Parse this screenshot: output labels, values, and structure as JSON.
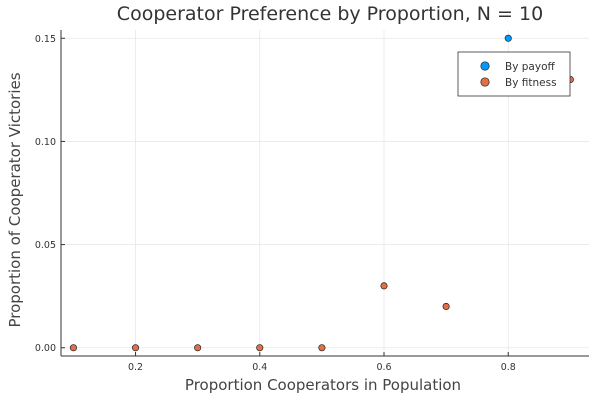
{
  "chart_data": {
    "type": "scatter",
    "title": "Cooperator Preference by Proportion, N = 10",
    "xlabel": "Proportion Cooperators in Population",
    "ylabel": "Proportion of Cooperator Victories",
    "xlim": [
      0.08,
      0.93
    ],
    "ylim": [
      -0.004,
      0.154
    ],
    "xticks": [
      0.2,
      0.4,
      0.6,
      0.8
    ],
    "xtick_labels": [
      "0.2",
      "0.4",
      "0.6",
      "0.8"
    ],
    "yticks": [
      0.0,
      0.05,
      0.1,
      0.15
    ],
    "ytick_labels": [
      "0.00",
      "0.05",
      "0.10",
      "0.15"
    ],
    "grid": true,
    "legend_position": "top-right",
    "series": [
      {
        "name": "By payoff",
        "color": "#009AFA",
        "x": [
          0.8
        ],
        "y": [
          0.15
        ]
      },
      {
        "name": "By fitness",
        "color": "#E26F46",
        "x": [
          0.1,
          0.2,
          0.3,
          0.4,
          0.5,
          0.6,
          0.7,
          0.9
        ],
        "y": [
          0.0,
          0.0,
          0.0,
          0.0,
          0.0,
          0.03,
          0.02,
          0.13
        ]
      }
    ]
  }
}
